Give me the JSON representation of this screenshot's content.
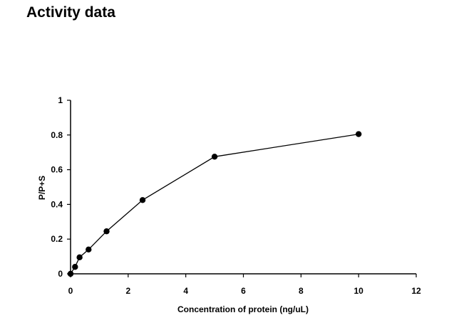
{
  "page": {
    "title": "Activity data"
  },
  "chart_data": {
    "type": "line",
    "title": "",
    "xlabel": "Concentration of protein (ng/uL)",
    "ylabel": "P/P+S",
    "xlim": [
      0,
      12
    ],
    "ylim": [
      0,
      1
    ],
    "xticks": [
      0,
      2,
      4,
      6,
      8,
      10,
      12
    ],
    "yticks": [
      0,
      0.2,
      0.4,
      0.6,
      0.8,
      1
    ],
    "xtick_labels": [
      "0",
      "2",
      "4",
      "6",
      "8",
      "10",
      "12"
    ],
    "ytick_labels": [
      "0",
      "0.2",
      "0.4",
      "0.6",
      "0.8",
      "1"
    ],
    "grid": false,
    "legend": "none",
    "series": [
      {
        "x": [
          0,
          0.156,
          0.3125,
          0.625,
          1.25,
          2.5,
          5,
          10
        ],
        "y": [
          0.0,
          0.04,
          0.095,
          0.14,
          0.245,
          0.425,
          0.675,
          0.805
        ],
        "color": "#000000",
        "marker": "circle"
      }
    ]
  }
}
